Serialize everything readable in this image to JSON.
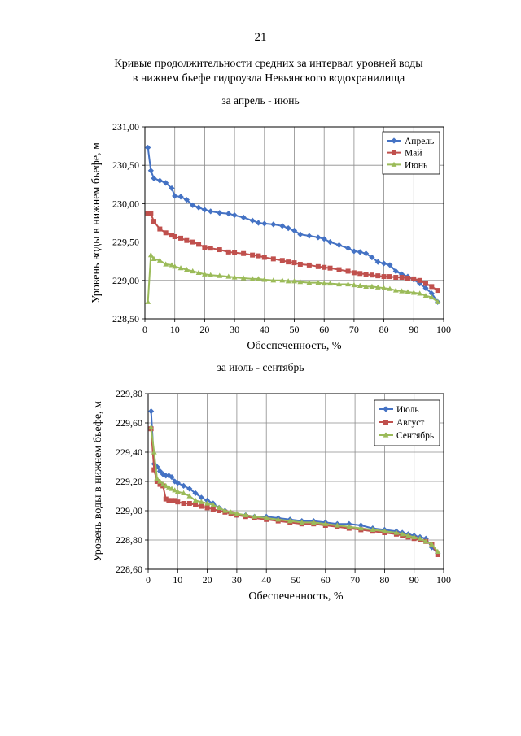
{
  "page": {
    "number": "21",
    "title_line1": "Кривые продолжительности средних за интервал уровней воды",
    "title_line2": "в нижнем бьефе гидроузла Невьянского водохранилища"
  },
  "chart_data": [
    {
      "type": "line",
      "subtitle": "за апрель - июнь",
      "xlabel": "Обеспеченность, %",
      "ylabel": "Уровень воды в нижнем бьефе, м",
      "xlim": [
        0,
        100
      ],
      "ylim": [
        228.5,
        231.0
      ],
      "x_ticks": [
        "0",
        "10",
        "20",
        "30",
        "40",
        "50",
        "60",
        "70",
        "80",
        "90",
        "100"
      ],
      "y_ticks": [
        "228,50",
        "229,00",
        "229,50",
        "230,00",
        "230,50",
        "231,00"
      ],
      "grid": true,
      "legend_position": "top-right",
      "x": [
        1,
        2,
        3,
        5,
        7,
        9,
        10,
        12,
        14,
        16,
        18,
        20,
        22,
        25,
        28,
        30,
        33,
        36,
        38,
        40,
        43,
        46,
        48,
        50,
        52,
        55,
        58,
        60,
        62,
        65,
        68,
        70,
        72,
        74,
        76,
        78,
        80,
        82,
        84,
        86,
        88,
        90,
        92,
        94,
        96,
        98
      ],
      "series": [
        {
          "name": "Апрель",
          "color": "#4472c4",
          "marker": "diamond",
          "values": [
            230.73,
            230.43,
            230.33,
            230.3,
            230.27,
            230.2,
            230.1,
            230.09,
            230.05,
            229.98,
            229.95,
            229.92,
            229.9,
            229.88,
            229.87,
            229.85,
            229.82,
            229.78,
            229.75,
            229.74,
            229.73,
            229.71,
            229.68,
            229.65,
            229.6,
            229.58,
            229.56,
            229.54,
            229.5,
            229.46,
            229.42,
            229.38,
            229.37,
            229.35,
            229.3,
            229.24,
            229.22,
            229.2,
            229.12,
            229.08,
            229.05,
            229.01,
            228.96,
            228.9,
            228.83,
            228.72
          ]
        },
        {
          "name": "Май",
          "color": "#c0504d",
          "marker": "square",
          "values": [
            229.87,
            229.87,
            229.77,
            229.67,
            229.62,
            229.59,
            229.57,
            229.55,
            229.52,
            229.5,
            229.47,
            229.43,
            229.42,
            229.4,
            229.37,
            229.36,
            229.35,
            229.33,
            229.32,
            229.3,
            229.28,
            229.26,
            229.24,
            229.23,
            229.21,
            229.2,
            229.18,
            229.17,
            229.16,
            229.14,
            229.12,
            229.1,
            229.09,
            229.08,
            229.07,
            229.06,
            229.05,
            229.05,
            229.04,
            229.04,
            229.03,
            229.02,
            229.0,
            228.96,
            228.92,
            228.87
          ]
        },
        {
          "name": "Июнь",
          "color": "#9bbb59",
          "marker": "triangle",
          "values": [
            228.72,
            229.33,
            229.28,
            229.26,
            229.21,
            229.2,
            229.18,
            229.16,
            229.14,
            229.12,
            229.1,
            229.08,
            229.07,
            229.06,
            229.05,
            229.04,
            229.03,
            229.02,
            229.02,
            229.01,
            229.0,
            229.0,
            228.99,
            228.99,
            228.98,
            228.97,
            228.97,
            228.96,
            228.96,
            228.95,
            228.95,
            228.94,
            228.93,
            228.92,
            228.92,
            228.91,
            228.9,
            228.89,
            228.87,
            228.86,
            228.85,
            228.84,
            228.83,
            228.8,
            228.78,
            228.72
          ]
        }
      ]
    },
    {
      "type": "line",
      "subtitle": "за июль - сентябрь",
      "xlabel": "Обеспеченность, %",
      "ylabel": "Уровень воды в нижнем бьефе, м",
      "xlim": [
        0,
        100
      ],
      "ylim": [
        228.6,
        229.8
      ],
      "x_ticks": [
        "0",
        "10",
        "20",
        "30",
        "40",
        "50",
        "60",
        "70",
        "80",
        "90",
        "100"
      ],
      "y_ticks": [
        "228,60",
        "228,80",
        "229,00",
        "229,20",
        "229,40",
        "229,60",
        "229,80"
      ],
      "grid": true,
      "legend_position": "top-right",
      "x": [
        1,
        2,
        3,
        4,
        5,
        6,
        7,
        8,
        9,
        10,
        12,
        14,
        16,
        18,
        20,
        22,
        24,
        26,
        28,
        30,
        33,
        36,
        40,
        44,
        48,
        52,
        56,
        60,
        64,
        68,
        72,
        76,
        80,
        84,
        86,
        88,
        90,
        92,
        94,
        96,
        98
      ],
      "series": [
        {
          "name": "Июль",
          "color": "#4472c4",
          "marker": "diamond",
          "values": [
            229.68,
            229.32,
            229.3,
            229.27,
            229.25,
            229.24,
            229.24,
            229.23,
            229.2,
            229.19,
            229.17,
            229.15,
            229.12,
            229.09,
            229.07,
            229.05,
            229.02,
            229.0,
            228.98,
            228.97,
            228.97,
            228.96,
            228.96,
            228.95,
            228.94,
            228.93,
            228.93,
            228.92,
            228.91,
            228.91,
            228.9,
            228.88,
            228.87,
            228.86,
            228.85,
            228.84,
            228.83,
            228.82,
            228.81,
            228.75,
            228.71
          ]
        },
        {
          "name": "Август",
          "color": "#c0504d",
          "marker": "square",
          "values": [
            229.56,
            229.28,
            229.2,
            229.18,
            229.17,
            229.08,
            229.07,
            229.07,
            229.07,
            229.06,
            229.05,
            229.05,
            229.04,
            229.03,
            229.02,
            229.01,
            229.0,
            228.99,
            228.98,
            228.97,
            228.96,
            228.95,
            228.94,
            228.93,
            228.92,
            228.91,
            228.91,
            228.9,
            228.89,
            228.88,
            228.87,
            228.86,
            228.85,
            228.84,
            228.83,
            228.82,
            228.81,
            228.8,
            228.79,
            228.77,
            228.7
          ]
        },
        {
          "name": "Сентябрь",
          "color": "#9bbb59",
          "marker": "triangle",
          "values": [
            229.57,
            229.4,
            229.22,
            229.2,
            229.18,
            229.17,
            229.16,
            229.15,
            229.14,
            229.13,
            229.12,
            229.1,
            229.07,
            229.06,
            229.05,
            229.04,
            229.02,
            229.0,
            228.99,
            228.98,
            228.97,
            228.96,
            228.95,
            228.94,
            228.93,
            228.92,
            228.92,
            228.91,
            228.9,
            228.89,
            228.88,
            228.87,
            228.86,
            228.85,
            228.84,
            228.83,
            228.82,
            228.81,
            228.79,
            228.77,
            228.72
          ]
        }
      ]
    }
  ]
}
